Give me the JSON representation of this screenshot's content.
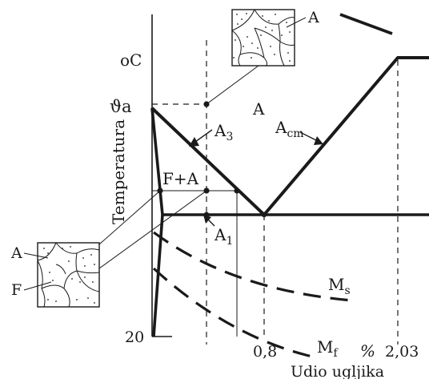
{
  "axes": {
    "y_label": "Temperatura",
    "y_unit": "oC",
    "y_high": "ϑa",
    "y_low": "20",
    "x_label": "Udio ugljika",
    "x_unit": "%",
    "x_ticks": [
      "0,8",
      "2,03"
    ]
  },
  "regions": {
    "austenite": "A",
    "ferrite_austenite": "F+A"
  },
  "lines": {
    "a3": "A3",
    "acm": "Acm",
    "a1": "A1",
    "ms": "Ms",
    "mf": "Mf"
  },
  "micrographs": {
    "top_label": "A",
    "bottom_labels": [
      "A",
      "F"
    ]
  }
}
